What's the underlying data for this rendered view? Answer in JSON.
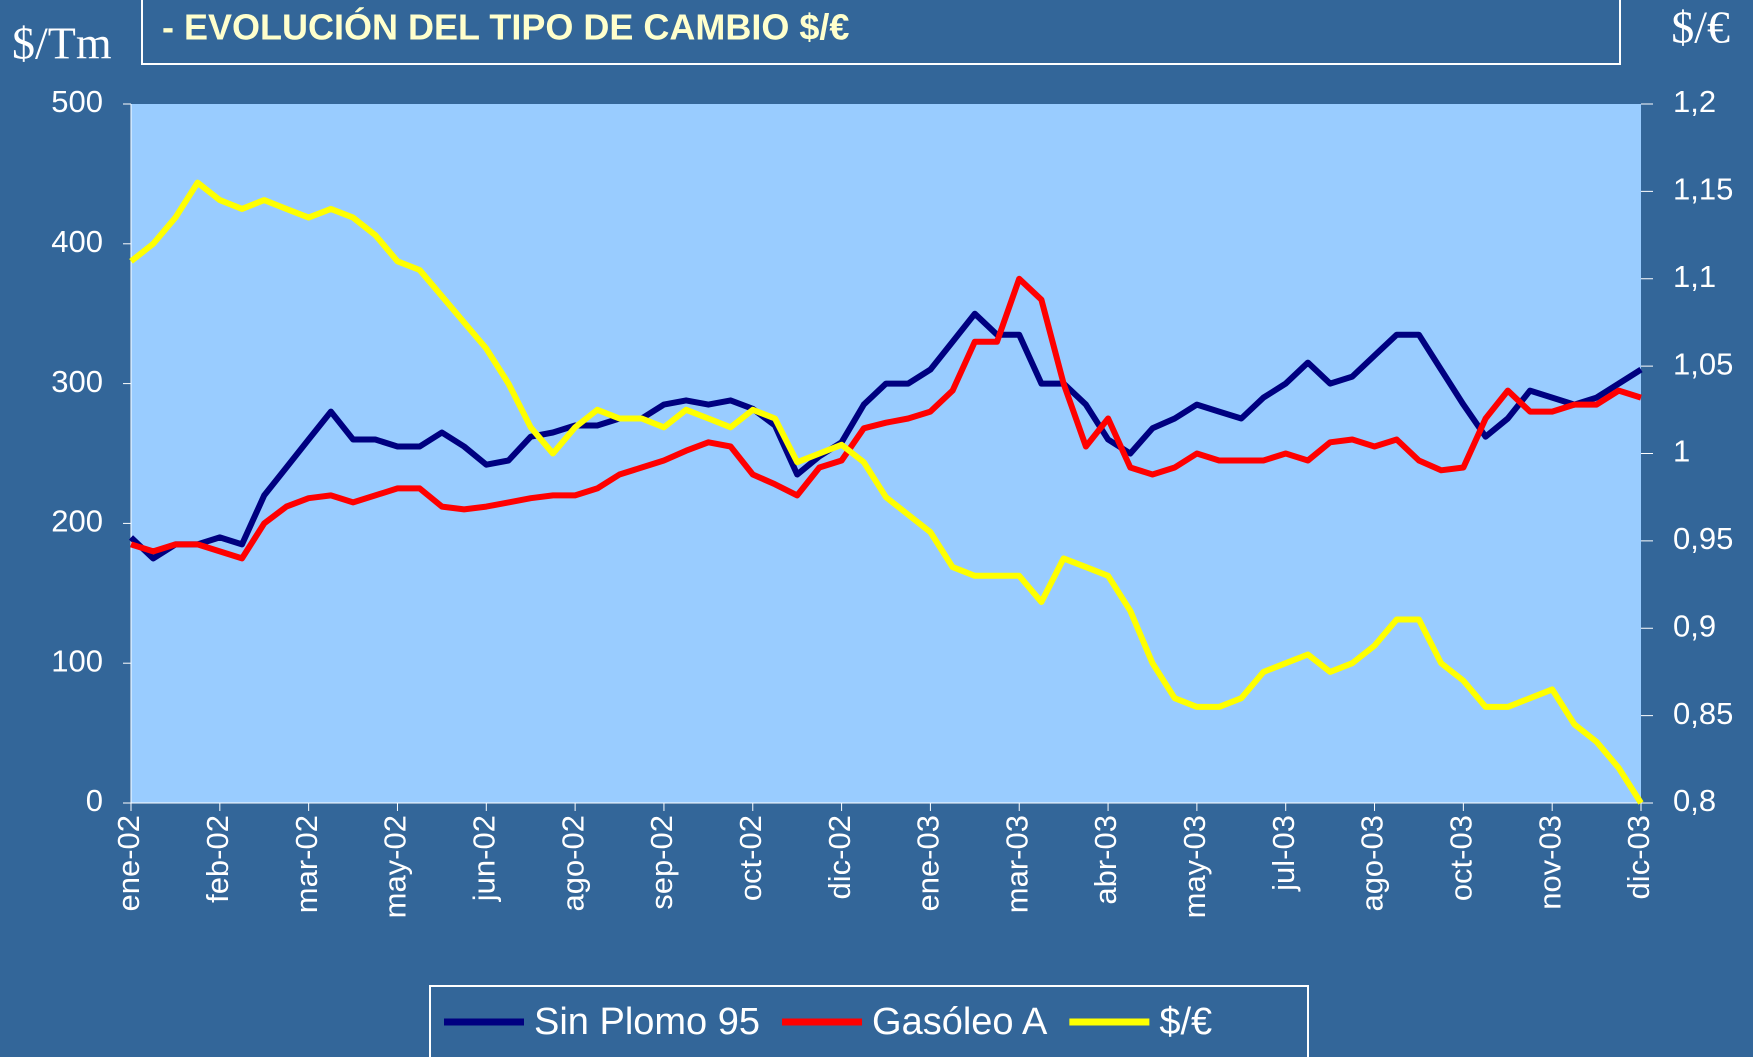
{
  "chart_data": {
    "type": "line",
    "title": "- EVOLUCIÓN DEL TIPO DE CAMBIO $/€",
    "y_label": "$/Tm",
    "y2_label": "$/€",
    "categories": [
      "ene-02",
      null,
      null,
      null,
      "feb-02",
      null,
      null,
      null,
      "mar-02",
      null,
      null,
      null,
      "may-02",
      null,
      null,
      null,
      "jun-02",
      null,
      null,
      null,
      "ago-02",
      null,
      null,
      null,
      "sep-02",
      null,
      null,
      null,
      "oct-02",
      null,
      null,
      null,
      "dic-02",
      null,
      null,
      null,
      "ene-03",
      null,
      null,
      null,
      "mar-03",
      null,
      null,
      null,
      "abr-03",
      null,
      null,
      null,
      "may-03",
      null,
      null,
      null,
      "jul-03",
      null,
      null,
      null,
      "ago-03",
      null,
      null,
      null,
      "oct-03",
      null,
      null,
      null,
      "nov-03",
      null,
      null,
      null,
      "dic-03"
    ],
    "ylim": [
      0,
      500
    ],
    "yticks": [
      0,
      100,
      200,
      300,
      400,
      500
    ],
    "y2lim": [
      0.8,
      1.2
    ],
    "y2ticks": [
      {
        "value": 0.8,
        "label": "0,8"
      },
      {
        "value": 0.85,
        "label": "0,85"
      },
      {
        "value": 0.9,
        "label": "0,9"
      },
      {
        "value": 0.95,
        "label": "0,95"
      },
      {
        "value": 1,
        "label": "1"
      },
      {
        "value": 1.05,
        "label": "1,05"
      },
      {
        "value": 1.1,
        "label": "1,1"
      },
      {
        "value": 1.15,
        "label": "1,15"
      },
      {
        "value": 1.2,
        "label": "1,2"
      }
    ],
    "legend": "bottom",
    "series": [
      {
        "name": "Sin Plomo 95",
        "color": "#000080",
        "values": [
          190,
          175,
          185,
          185,
          190,
          185,
          220,
          240,
          260,
          280,
          260,
          260,
          255,
          255,
          265,
          255,
          242,
          245,
          262,
          265,
          270,
          270,
          275,
          275,
          285,
          288,
          285,
          288,
          282,
          270,
          235,
          248,
          258,
          285,
          300,
          300,
          310,
          330,
          350,
          335,
          335,
          300,
          300,
          285,
          260,
          250,
          268,
          275,
          285,
          280,
          275,
          290,
          300,
          315,
          300,
          305,
          320,
          335,
          335,
          310,
          285,
          262,
          275,
          295,
          290,
          285,
          290,
          300,
          310
        ]
      },
      {
        "name": "Gasóleo A",
        "color": "#ff0000",
        "values": [
          185,
          180,
          185,
          185,
          180,
          175,
          200,
          212,
          218,
          220,
          215,
          220,
          225,
          225,
          212,
          210,
          212,
          215,
          218,
          220,
          220,
          225,
          235,
          240,
          245,
          252,
          258,
          255,
          235,
          228,
          220,
          240,
          245,
          268,
          272,
          275,
          280,
          295,
          330,
          330,
          375,
          360,
          300,
          255,
          275,
          240,
          235,
          240,
          250,
          245,
          245,
          245,
          250,
          245,
          258,
          260,
          255,
          260,
          245,
          238,
          240,
          275,
          295,
          280,
          280,
          285,
          285,
          295,
          290
        ]
      },
      {
        "name": "$/€",
        "color": "#ffff00",
        "axis": "y2",
        "values": [
          1.11,
          1.12,
          1.135,
          1.155,
          1.145,
          1.14,
          1.145,
          1.14,
          1.135,
          1.14,
          1.135,
          1.125,
          1.11,
          1.105,
          1.09,
          1.075,
          1.06,
          1.04,
          1.015,
          1.0,
          1.015,
          1.025,
          1.02,
          1.02,
          1.015,
          1.025,
          1.02,
          1.015,
          1.025,
          1.02,
          0.995,
          1.0,
          1.005,
          0.995,
          0.975,
          0.965,
          0.955,
          0.935,
          0.93,
          0.93,
          0.93,
          0.915,
          0.94,
          0.935,
          0.93,
          0.91,
          0.88,
          0.86,
          0.855,
          0.855,
          0.86,
          0.875,
          0.88,
          0.885,
          0.875,
          0.88,
          0.89,
          0.905,
          0.905,
          0.88,
          0.87,
          0.855,
          0.855,
          0.86,
          0.865,
          0.845,
          0.835,
          0.82,
          0.8
        ]
      }
    ]
  }
}
